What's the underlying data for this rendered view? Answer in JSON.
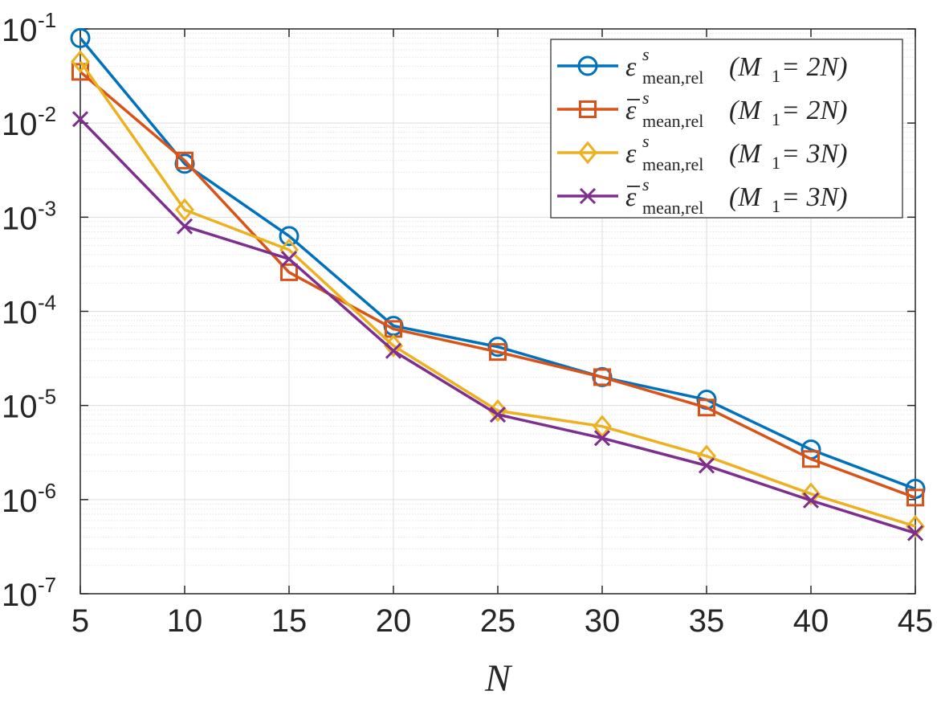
{
  "chart_data": {
    "type": "line",
    "title": "",
    "xlabel": "N",
    "ylabel": "",
    "yscale": "log",
    "x": [
      5,
      10,
      15,
      20,
      25,
      30,
      35,
      40,
      45
    ],
    "xlim": [
      5,
      45
    ],
    "ylim": [
      1e-07,
      0.1
    ],
    "x_ticks": [
      "5",
      "10",
      "15",
      "20",
      "25",
      "30",
      "35",
      "40",
      "45"
    ],
    "y_ticks": [
      {
        "base": "10",
        "exp": "-7",
        "value": 1e-07
      },
      {
        "base": "10",
        "exp": "-6",
        "value": 1e-06
      },
      {
        "base": "10",
        "exp": "-5",
        "value": 1e-05
      },
      {
        "base": "10",
        "exp": "-4",
        "value": 0.0001
      },
      {
        "base": "10",
        "exp": "-3",
        "value": 0.001
      },
      {
        "base": "10",
        "exp": "-2",
        "value": 0.01
      },
      {
        "base": "10",
        "exp": "-1",
        "value": 0.1
      }
    ],
    "grid": true,
    "legend_position": "top-right",
    "series": [
      {
        "name": "ε^s_mean,rel(M1 = 2N)",
        "legend": {
          "symbol": "ε",
          "bar": false,
          "sup": "s",
          "sub": "mean,rel",
          "arg": "(M",
          "arg_sub": "1",
          "arg_tail": " = 2N)"
        },
        "color": "#0072BD",
        "marker": "circle",
        "values": [
          0.08,
          0.0037,
          0.00063,
          7e-05,
          4.2e-05,
          2e-05,
          1.15e-05,
          3.4e-06,
          1.3e-06
        ]
      },
      {
        "name": "ε̄^s_mean,rel(M1 = 2N)",
        "legend": {
          "symbol": "ε",
          "bar": true,
          "sup": "s",
          "sub": "mean,rel",
          "arg": "(M",
          "arg_sub": "1",
          "arg_tail": " = 2N)"
        },
        "color": "#D95319",
        "marker": "square",
        "values": [
          0.035,
          0.004,
          0.00026,
          6.5e-05,
          3.7e-05,
          2e-05,
          9.5e-06,
          2.7e-06,
          1.05e-06
        ]
      },
      {
        "name": "ε^s_mean,rel(M1 = 3N)",
        "legend": {
          "symbol": "ε",
          "bar": false,
          "sup": "s",
          "sub": "mean,rel",
          "arg": "(M",
          "arg_sub": "1",
          "arg_tail": " = 3N)"
        },
        "color": "#EDB120",
        "marker": "diamond",
        "values": [
          0.045,
          0.0012,
          0.00045,
          4.3e-05,
          8.8e-06,
          6e-06,
          2.9e-06,
          1.15e-06,
          5.2e-07
        ]
      },
      {
        "name": "ε̄^s_mean,rel(M1 = 3N)",
        "legend": {
          "symbol": "ε",
          "bar": true,
          "sup": "s",
          "sub": "mean,rel",
          "arg": "(M",
          "arg_sub": "1",
          "arg_tail": " = 3N)"
        },
        "color": "#7E2F8E",
        "marker": "x",
        "values": [
          0.011,
          0.0008,
          0.00036,
          3.8e-05,
          8e-06,
          4.5e-06,
          2.3e-06,
          9.8e-07,
          4.4e-07
        ]
      }
    ]
  }
}
